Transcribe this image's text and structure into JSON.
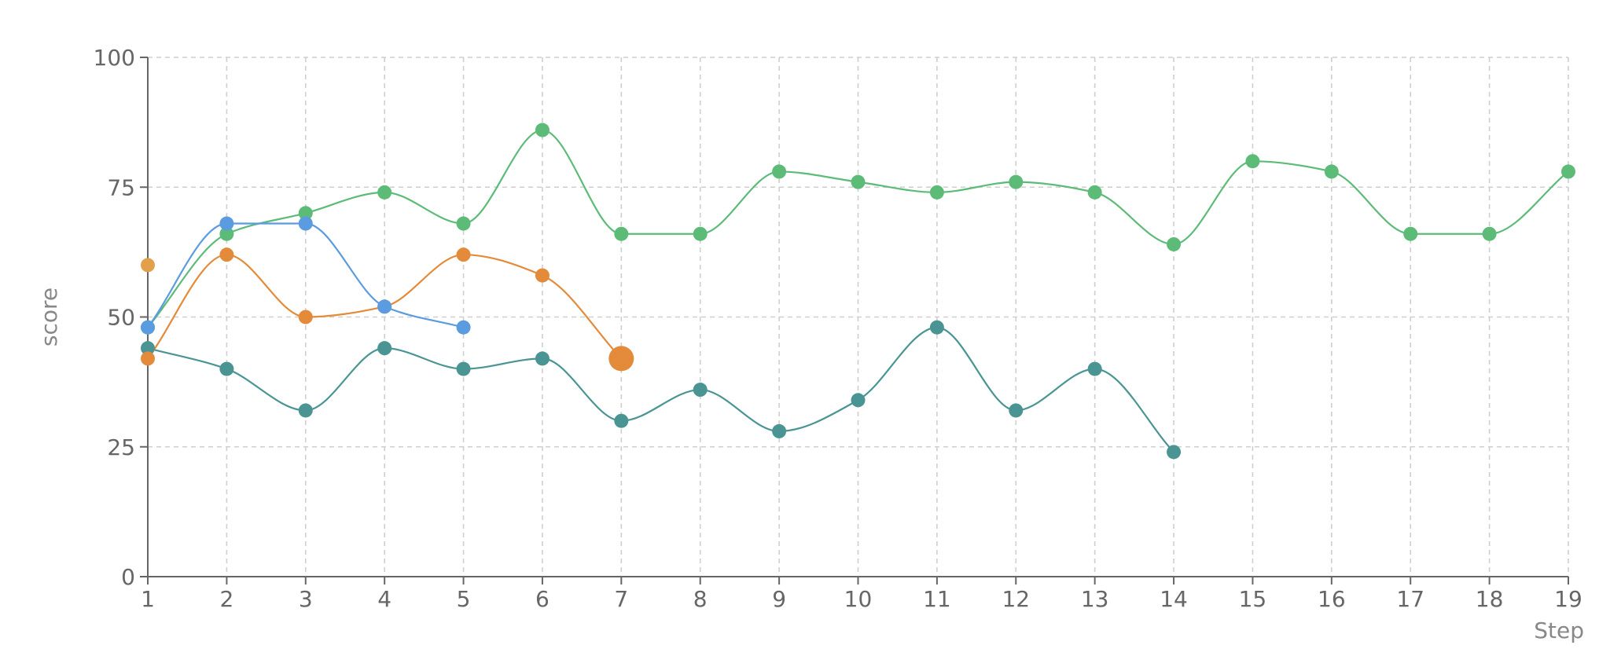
{
  "chart_data": {
    "type": "line",
    "xlabel": "Step",
    "ylabel": "score",
    "xlim": [
      1,
      19
    ],
    "ylim": [
      0,
      100
    ],
    "x_ticks": [
      1,
      2,
      3,
      4,
      5,
      6,
      7,
      8,
      9,
      10,
      11,
      12,
      13,
      14,
      15,
      16,
      17,
      18,
      19
    ],
    "y_ticks": [
      0,
      25,
      50,
      75,
      100
    ],
    "grid": true,
    "curve": "smooth",
    "series": [
      {
        "color": "#5dbb78",
        "x": [
          1,
          2,
          3,
          4,
          5,
          6,
          7,
          8,
          9,
          10,
          11,
          12,
          13,
          14,
          15,
          16,
          17,
          18,
          19
        ],
        "values": [
          48,
          66,
          70,
          74,
          68,
          86,
          66,
          66,
          78,
          76,
          74,
          76,
          74,
          64,
          80,
          78,
          66,
          66,
          78
        ]
      },
      {
        "color": "#4a9594",
        "x": [
          1,
          2,
          3,
          4,
          5,
          6,
          7,
          8,
          9,
          10,
          11,
          12,
          13,
          14
        ],
        "values": [
          44,
          40,
          32,
          44,
          40,
          42,
          30,
          36,
          28,
          34,
          48,
          32,
          40,
          24
        ]
      },
      {
        "color": "#e38b3a",
        "x": [
          1,
          2,
          3,
          4,
          5,
          6,
          7
        ],
        "values": [
          42,
          62,
          50,
          52,
          62,
          58,
          42
        ],
        "highlight_last": true
      },
      {
        "color": "#5b9be0",
        "x": [
          1,
          2,
          3,
          4,
          5
        ],
        "values": [
          48,
          68,
          68,
          52,
          48
        ]
      }
    ],
    "extra_points": [
      {
        "x": 1,
        "y": 60,
        "color": "#e2a04c"
      }
    ]
  }
}
